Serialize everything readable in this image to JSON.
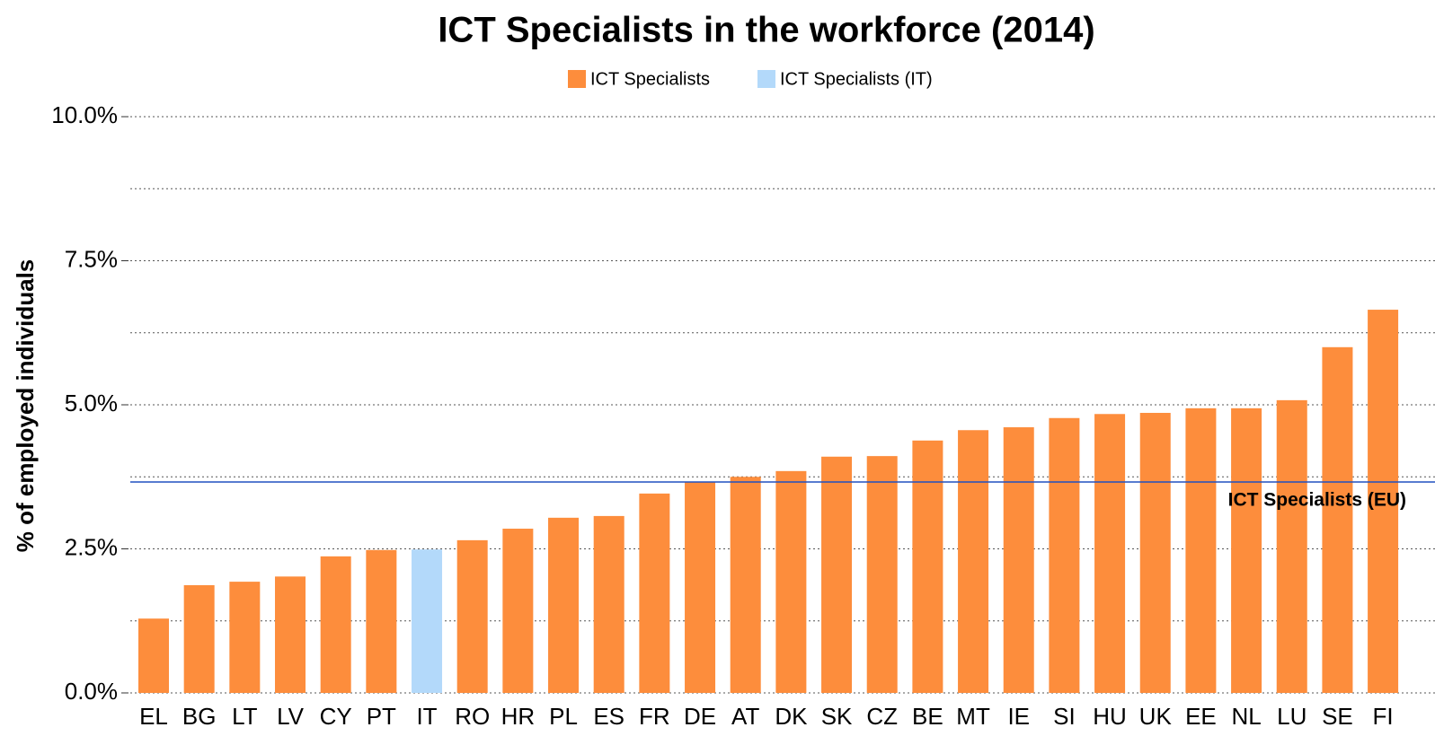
{
  "chart_data": {
    "type": "bar",
    "title": "ICT Specialists in the workforce (2014)",
    "y_label": "% of employed individuals",
    "categories": [
      "EL",
      "BG",
      "LT",
      "LV",
      "CY",
      "PT",
      "IT",
      "RO",
      "HR",
      "PL",
      "ES",
      "FR",
      "DE",
      "AT",
      "DK",
      "SK",
      "CZ",
      "BE",
      "MT",
      "IE",
      "SI",
      "HU",
      "UK",
      "EE",
      "NL",
      "LU",
      "SE",
      "FI"
    ],
    "series": [
      {
        "name": "ICT Specialists",
        "color": "#fd8d3c",
        "values": [
          1.29,
          1.87,
          1.93,
          2.02,
          2.37,
          2.48,
          null,
          2.65,
          2.85,
          3.04,
          3.07,
          3.46,
          3.66,
          3.75,
          3.85,
          4.1,
          4.11,
          4.38,
          4.56,
          4.61,
          4.77,
          4.84,
          4.86,
          4.94,
          4.94,
          5.08,
          6.0,
          6.65
        ]
      },
      {
        "name": "ICT Specialists (IT)",
        "color": "#b3d9fa",
        "values": [
          null,
          null,
          null,
          null,
          null,
          null,
          2.49,
          null,
          null,
          null,
          null,
          null,
          null,
          null,
          null,
          null,
          null,
          null,
          null,
          null,
          null,
          null,
          null,
          null,
          null,
          null,
          null,
          null
        ]
      }
    ],
    "reference_line": {
      "value": 3.66,
      "label": "ICT Specialists (EU)",
      "color": "#2050c0"
    },
    "ylim": [
      0,
      10
    ],
    "yticks": [
      {
        "value": 0,
        "label": "0.0%"
      },
      {
        "value": 2.5,
        "label": "2.5%"
      },
      {
        "value": 5,
        "label": "5.0%"
      },
      {
        "value": 7.5,
        "label": "7.5%"
      },
      {
        "value": 10,
        "label": "10.0%"
      }
    ],
    "minor_yticks": [
      1.25,
      3.75,
      6.25,
      8.75
    ],
    "grid": true,
    "legend": "top"
  }
}
